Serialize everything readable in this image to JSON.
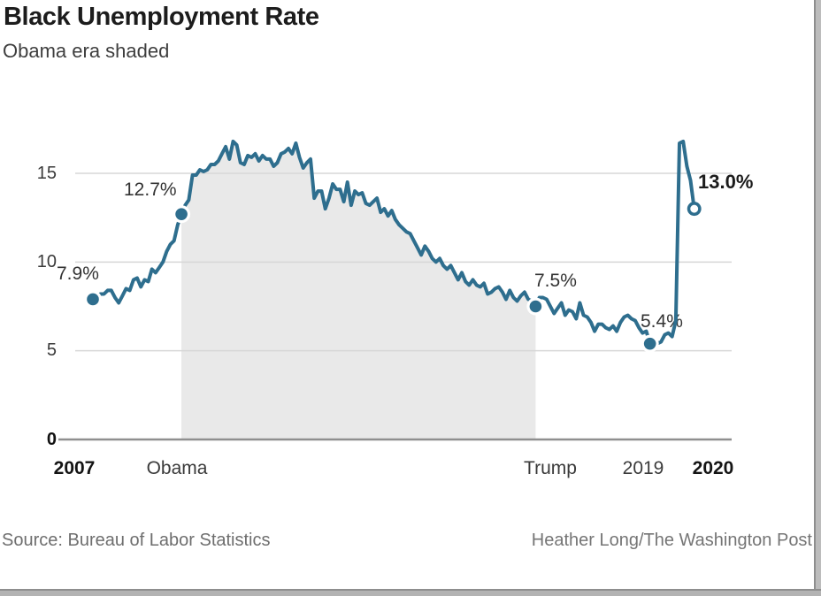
{
  "page": {
    "title": "Black Unemployment Rate",
    "subtitle": "Obama era shaded",
    "source": "Source: Bureau of Labor Statistics",
    "credit": "Heather Long/The Washington Post"
  },
  "colors": {
    "line": "#2e6e8e",
    "shade": "#e9e9e9",
    "grid": "#d7d7d7",
    "axis": "#8f8f8f",
    "marker_halo": "#ffffff"
  },
  "chart_data": {
    "type": "line",
    "title": "Black Unemployment Rate",
    "subtitle": "Obama era shaded",
    "unit": "percent",
    "frequency": "monthly",
    "x_start": "2007-01",
    "x_end": "2020-08",
    "ylim": [
      0,
      17.5
    ],
    "yticks": [
      0,
      5,
      10,
      15
    ],
    "ytick_labels": [
      "0",
      "5",
      "10",
      "15"
    ],
    "grid": "horizontal",
    "shaded_region": {
      "label": "Obama era",
      "from": "2009-01",
      "to": "2017-01",
      "from_index": 24,
      "to_index": 120
    },
    "x_axis_labels": [
      {
        "text": "2007",
        "bold": true
      },
      {
        "text": "Obama",
        "bold": false
      },
      {
        "text": "Trump",
        "bold": false
      },
      {
        "text": "2019",
        "bold": false
      },
      {
        "text": "2020",
        "bold": true
      }
    ],
    "annotations": [
      {
        "label": "7.9%",
        "date": "2007-01",
        "index": 0,
        "value": 7.9,
        "marker": "filled"
      },
      {
        "label": "12.7%",
        "date": "2009-01",
        "index": 24,
        "value": 12.7,
        "marker": "filled"
      },
      {
        "label": "7.5%",
        "date": "2017-01",
        "index": 120,
        "value": 7.5,
        "marker": "filled"
      },
      {
        "label": "5.4%",
        "date": "2019-08",
        "index": 151,
        "value": 5.4,
        "marker": "filled"
      },
      {
        "label": "13.0%",
        "date": "2020-08",
        "index": 163,
        "value": 13.0,
        "marker": "open"
      }
    ],
    "values": [
      7.9,
      8.1,
      8.2,
      8.2,
      8.4,
      8.4,
      8.0,
      7.7,
      8.1,
      8.5,
      8.4,
      9.0,
      9.1,
      8.6,
      9.0,
      8.9,
      9.6,
      9.4,
      9.7,
      10.0,
      10.6,
      11.0,
      11.2,
      12.1,
      12.7,
      13.2,
      13.5,
      14.9,
      14.9,
      15.2,
      15.1,
      15.2,
      15.5,
      15.5,
      15.7,
      16.1,
      16.5,
      15.8,
      16.8,
      16.6,
      15.6,
      15.5,
      16.0,
      15.9,
      16.1,
      15.7,
      16.0,
      15.8,
      15.8,
      15.4,
      15.6,
      16.1,
      16.2,
      16.4,
      16.1,
      16.7,
      15.9,
      15.3,
      15.6,
      15.8,
      13.6,
      14.0,
      14.0,
      13.0,
      13.6,
      14.4,
      14.1,
      14.1,
      13.4,
      14.5,
      13.2,
      14.0,
      13.8,
      13.9,
      13.3,
      13.2,
      13.4,
      13.6,
      12.8,
      13.0,
      12.6,
      12.9,
      12.4,
      12.1,
      11.9,
      11.7,
      11.6,
      11.2,
      10.8,
      10.4,
      10.9,
      10.6,
      10.2,
      10.0,
      10.2,
      9.8,
      9.6,
      9.8,
      9.4,
      9.0,
      9.4,
      8.9,
      8.7,
      9.0,
      8.7,
      8.6,
      8.8,
      8.2,
      8.3,
      8.5,
      8.6,
      8.3,
      7.9,
      8.4,
      8.0,
      7.8,
      8.1,
      8.3,
      7.9,
      7.8,
      7.5,
      8.0,
      8.0,
      7.9,
      7.5,
      7.1,
      7.4,
      7.7,
      7.0,
      7.3,
      7.2,
      6.8,
      7.7,
      7.0,
      6.9,
      6.6,
      6.1,
      6.5,
      6.5,
      6.3,
      6.2,
      6.4,
      6.1,
      6.6,
      6.9,
      7.0,
      6.8,
      6.7,
      6.3,
      6.0,
      6.1,
      5.4,
      5.5,
      5.4,
      5.5,
      5.9,
      6.0,
      5.8,
      6.7,
      16.7,
      16.8,
      15.4,
      14.6,
      13.0
    ]
  }
}
